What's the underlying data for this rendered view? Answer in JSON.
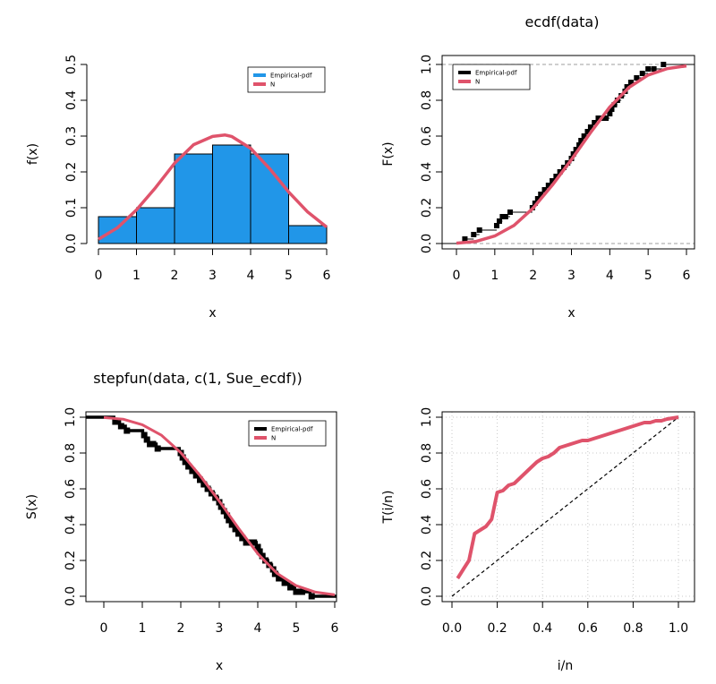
{
  "colors": {
    "bar_fill": "#2196E8",
    "normal_line": "#DF536B",
    "empirical": "#000000",
    "reference": "#9E9E9E",
    "grid": "#C8C8C8"
  },
  "chart_data": [
    {
      "type": "bar",
      "title": "",
      "xlabel": "x",
      "ylabel": "f(x)",
      "xlim": [
        0,
        6
      ],
      "ylim": [
        0,
        0.5
      ],
      "xticks": [
        "0",
        "1",
        "2",
        "3",
        "4",
        "5",
        "6"
      ],
      "yticks": [
        "0.0",
        "0.1",
        "0.2",
        "0.3",
        "0.4",
        "0.5"
      ],
      "bins": [
        [
          0,
          1
        ],
        [
          1,
          2
        ],
        [
          2,
          3
        ],
        [
          3,
          4
        ],
        [
          4,
          5
        ],
        [
          5,
          6
        ]
      ],
      "values": [
        0.075,
        0.1,
        0.25,
        0.275,
        0.25,
        0.05
      ],
      "curve": {
        "x": [
          0,
          0.5,
          1,
          1.5,
          2,
          2.5,
          3,
          3.33,
          3.5,
          4,
          4.5,
          5,
          5.5,
          6
        ],
        "y": [
          0.012,
          0.044,
          0.094,
          0.156,
          0.224,
          0.276,
          0.299,
          0.303,
          0.299,
          0.266,
          0.209,
          0.144,
          0.088,
          0.046
        ]
      },
      "legend": [
        "Empirical-pdf",
        "N"
      ],
      "legend_position": "top-right"
    },
    {
      "type": "line",
      "title": "ecdf(data)",
      "xlabel": "x",
      "ylabel": "F(x)",
      "xlim": [
        0,
        6
      ],
      "ylim": [
        0,
        1
      ],
      "xticks": [
        "0",
        "1",
        "2",
        "3",
        "4",
        "5",
        "6"
      ],
      "yticks": [
        "0.0",
        "0.2",
        "0.4",
        "0.6",
        "0.8",
        "1.0"
      ],
      "reference_lines": [
        0,
        1
      ],
      "steps": {
        "x": [
          0.22,
          0.45,
          0.6,
          1.05,
          1.12,
          1.2,
          1.28,
          1.4,
          1.98,
          2.05,
          2.12,
          2.2,
          2.3,
          2.4,
          2.5,
          2.6,
          2.7,
          2.8,
          2.9,
          3.0,
          3.05,
          3.12,
          3.2,
          3.25,
          3.33,
          3.42,
          3.5,
          3.6,
          3.7,
          3.8,
          3.9,
          4.0,
          4.05,
          4.12,
          4.2,
          4.3,
          4.4,
          4.45,
          4.55,
          4.7,
          4.85,
          5.0,
          5.15,
          5.4
        ],
        "y": [
          0.025,
          0.05,
          0.075,
          0.1,
          0.125,
          0.15,
          0.15,
          0.175,
          0.2,
          0.225,
          0.25,
          0.275,
          0.3,
          0.325,
          0.35,
          0.375,
          0.4,
          0.425,
          0.45,
          0.475,
          0.5,
          0.525,
          0.55,
          0.575,
          0.6,
          0.625,
          0.65,
          0.675,
          0.7,
          0.7,
          0.7,
          0.725,
          0.75,
          0.775,
          0.8,
          0.825,
          0.85,
          0.875,
          0.9,
          0.925,
          0.95,
          0.975,
          0.975,
          1.0
        ]
      },
      "curve": {
        "x": [
          0,
          0.5,
          1,
          1.5,
          2,
          2.5,
          3,
          3.5,
          4,
          4.5,
          5,
          5.5,
          6
        ],
        "y": [
          0.002,
          0.011,
          0.042,
          0.101,
          0.198,
          0.326,
          0.469,
          0.62,
          0.762,
          0.872,
          0.941,
          0.977,
          0.992
        ]
      },
      "legend": [
        "Empirical-pdf",
        "N"
      ],
      "legend_position": "top-left"
    },
    {
      "type": "line",
      "title": "stepfun(data, c(1, Sue_ecdf))",
      "xlabel": "x",
      "ylabel": "S(x)",
      "xlim": [
        0,
        6
      ],
      "ylim": [
        0,
        1
      ],
      "xticks": [
        "0",
        "1",
        "2",
        "3",
        "4",
        "5",
        "6"
      ],
      "yticks": [
        "0.0",
        "0.2",
        "0.4",
        "0.6",
        "0.8",
        "1.0"
      ],
      "steps": {
        "x": [
          0.3,
          0.45,
          0.6,
          1.05,
          1.12,
          1.2,
          1.28,
          1.4,
          2.0,
          2.05,
          2.12,
          2.2,
          2.3,
          2.4,
          2.5,
          2.6,
          2.7,
          2.8,
          2.9,
          3.0,
          3.05,
          3.12,
          3.2,
          3.25,
          3.33,
          3.42,
          3.5,
          3.6,
          3.7,
          3.8,
          3.9,
          4.0,
          4.05,
          4.12,
          4.2,
          4.3,
          4.4,
          4.45,
          4.55,
          4.7,
          4.85,
          5.0,
          5.15,
          5.4
        ],
        "y": [
          0.975,
          0.95,
          0.925,
          0.9,
          0.875,
          0.85,
          0.85,
          0.825,
          0.8,
          0.775,
          0.75,
          0.725,
          0.7,
          0.675,
          0.65,
          0.625,
          0.6,
          0.575,
          0.55,
          0.525,
          0.5,
          0.475,
          0.45,
          0.425,
          0.4,
          0.375,
          0.35,
          0.325,
          0.3,
          0.3,
          0.3,
          0.275,
          0.25,
          0.225,
          0.2,
          0.175,
          0.15,
          0.125,
          0.1,
          0.075,
          0.05,
          0.025,
          0.025,
          0.0
        ]
      },
      "curve": {
        "x": [
          0,
          0.5,
          1,
          1.5,
          2,
          2.5,
          3,
          3.5,
          4,
          4.5,
          5,
          5.5,
          6
        ],
        "y": [
          0.998,
          0.989,
          0.958,
          0.899,
          0.802,
          0.674,
          0.531,
          0.38,
          0.238,
          0.128,
          0.059,
          0.023,
          0.008
        ]
      },
      "legend": [
        "Empirical-pdf",
        "N"
      ],
      "legend_position": "top-right"
    },
    {
      "type": "line",
      "title": "",
      "xlabel": "i/n",
      "ylabel": "T(i/n)",
      "xlim": [
        0,
        1
      ],
      "ylim": [
        0,
        1
      ],
      "xticks": [
        "0.0",
        "0.2",
        "0.4",
        "0.6",
        "0.8",
        "1.0"
      ],
      "yticks": [
        "0.0",
        "0.2",
        "0.4",
        "0.6",
        "0.8",
        "1.0"
      ],
      "grid": true,
      "diagonal": true,
      "x": [
        0.025,
        0.05,
        0.075,
        0.1,
        0.125,
        0.15,
        0.175,
        0.2,
        0.225,
        0.25,
        0.275,
        0.3,
        0.325,
        0.35,
        0.375,
        0.4,
        0.425,
        0.45,
        0.475,
        0.5,
        0.525,
        0.55,
        0.575,
        0.6,
        0.625,
        0.65,
        0.675,
        0.7,
        0.725,
        0.75,
        0.775,
        0.8,
        0.825,
        0.85,
        0.875,
        0.9,
        0.925,
        0.95,
        0.975,
        1.0
      ],
      "y": [
        0.1,
        0.15,
        0.2,
        0.35,
        0.37,
        0.39,
        0.43,
        0.58,
        0.59,
        0.62,
        0.63,
        0.66,
        0.69,
        0.72,
        0.75,
        0.77,
        0.78,
        0.8,
        0.83,
        0.84,
        0.85,
        0.86,
        0.87,
        0.87,
        0.88,
        0.89,
        0.9,
        0.91,
        0.92,
        0.93,
        0.94,
        0.95,
        0.96,
        0.97,
        0.97,
        0.98,
        0.98,
        0.99,
        0.995,
        1.0
      ]
    }
  ]
}
